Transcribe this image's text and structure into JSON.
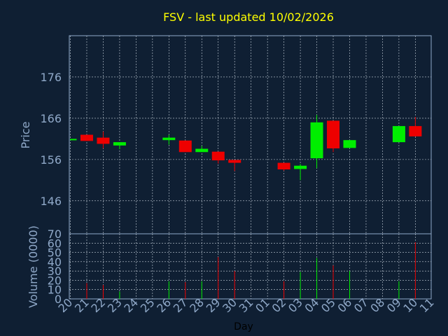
{
  "colors": {
    "background": "#0f1f33",
    "frame": "#8fa8c8",
    "grid": "#c8d2dc",
    "label": "#8fa8c8",
    "title": "#ffff00",
    "up": "#00ee00",
    "down": "#ee0000"
  },
  "chart_data": [
    {
      "type": "candlestick",
      "title": "FSV - last updated 10/02/2026",
      "ylabel": "Price",
      "ylim": [
        138,
        186
      ],
      "yticks": [
        146,
        156,
        166,
        176
      ],
      "grid": true,
      "categories": [
        "20",
        "21",
        "22",
        "23",
        "24",
        "25",
        "26",
        "27",
        "28",
        "29",
        "30",
        "31",
        "01",
        "02",
        "03",
        "04",
        "05",
        "06",
        "07",
        "08",
        "09",
        "10",
        "11"
      ],
      "candles": [
        {
          "day": "20",
          "open": 161.0,
          "close": 161.0,
          "high": 161.0,
          "low": 161.0
        },
        {
          "day": "21",
          "open": 162.0,
          "close": 160.5,
          "high": 162.0,
          "low": 160.5
        },
        {
          "day": "22",
          "open": 161.3,
          "close": 159.8,
          "high": 162.8,
          "low": 158.7
        },
        {
          "day": "23",
          "open": 159.4,
          "close": 160.2,
          "high": 160.2,
          "low": 158.5
        },
        {
          "day": "26",
          "open": 160.7,
          "close": 161.3,
          "high": 162.0,
          "low": 159.6
        },
        {
          "day": "27",
          "open": 160.6,
          "close": 157.8,
          "high": 160.6,
          "low": 157.8
        },
        {
          "day": "28",
          "open": 157.8,
          "close": 158.6,
          "high": 159.3,
          "low": 157.8
        },
        {
          "day": "29",
          "open": 157.9,
          "close": 155.8,
          "high": 157.9,
          "low": 155.0
        },
        {
          "day": "30",
          "open": 155.9,
          "close": 155.2,
          "high": 155.9,
          "low": 153.2
        },
        {
          "day": "02",
          "open": 155.2,
          "close": 153.6,
          "high": 155.2,
          "low": 153.3
        },
        {
          "day": "03",
          "open": 153.7,
          "close": 154.5,
          "high": 154.9,
          "low": 151.0
        },
        {
          "day": "04",
          "open": 156.3,
          "close": 165.0,
          "high": 166.8,
          "low": 153.9
        },
        {
          "day": "05",
          "open": 165.4,
          "close": 158.7,
          "high": 165.4,
          "low": 157.8
        },
        {
          "day": "06",
          "open": 158.8,
          "close": 160.7,
          "high": 160.7,
          "low": 158.8
        },
        {
          "day": "09",
          "open": 160.2,
          "close": 164.1,
          "high": 164.1,
          "low": 160.2
        },
        {
          "day": "10",
          "open": 164.1,
          "close": 161.6,
          "high": 166.3,
          "low": 161.6
        }
      ]
    },
    {
      "type": "bar",
      "xlabel": "Day",
      "ylabel": "Volume (0000)",
      "ylim": [
        0,
        70
      ],
      "yticks": [
        0,
        10,
        20,
        30,
        40,
        50,
        60,
        70
      ],
      "grid": true,
      "categories": [
        "20",
        "21",
        "22",
        "23",
        "24",
        "25",
        "26",
        "27",
        "28",
        "29",
        "30",
        "31",
        "01",
        "02",
        "03",
        "04",
        "05",
        "06",
        "07",
        "08",
        "09",
        "10",
        "11"
      ],
      "series": [
        {
          "values": [
            {
              "day": "21",
              "value": 17,
              "dir": "down"
            },
            {
              "day": "22",
              "value": 15,
              "dir": "down"
            },
            {
              "day": "23",
              "value": 8,
              "dir": "up"
            },
            {
              "day": "26",
              "value": 19,
              "dir": "up"
            },
            {
              "day": "27",
              "value": 18,
              "dir": "down"
            },
            {
              "day": "28",
              "value": 19,
              "dir": "up"
            },
            {
              "day": "29",
              "value": 45,
              "dir": "down"
            },
            {
              "day": "30",
              "value": 30,
              "dir": "down"
            },
            {
              "day": "02",
              "value": 19,
              "dir": "down"
            },
            {
              "day": "03",
              "value": 29,
              "dir": "up"
            },
            {
              "day": "04",
              "value": 44,
              "dir": "up"
            },
            {
              "day": "05",
              "value": 36,
              "dir": "down"
            },
            {
              "day": "06",
              "value": 30,
              "dir": "up"
            },
            {
              "day": "09",
              "value": 19,
              "dir": "up"
            },
            {
              "day": "10",
              "value": 61,
              "dir": "down"
            }
          ]
        }
      ]
    }
  ]
}
